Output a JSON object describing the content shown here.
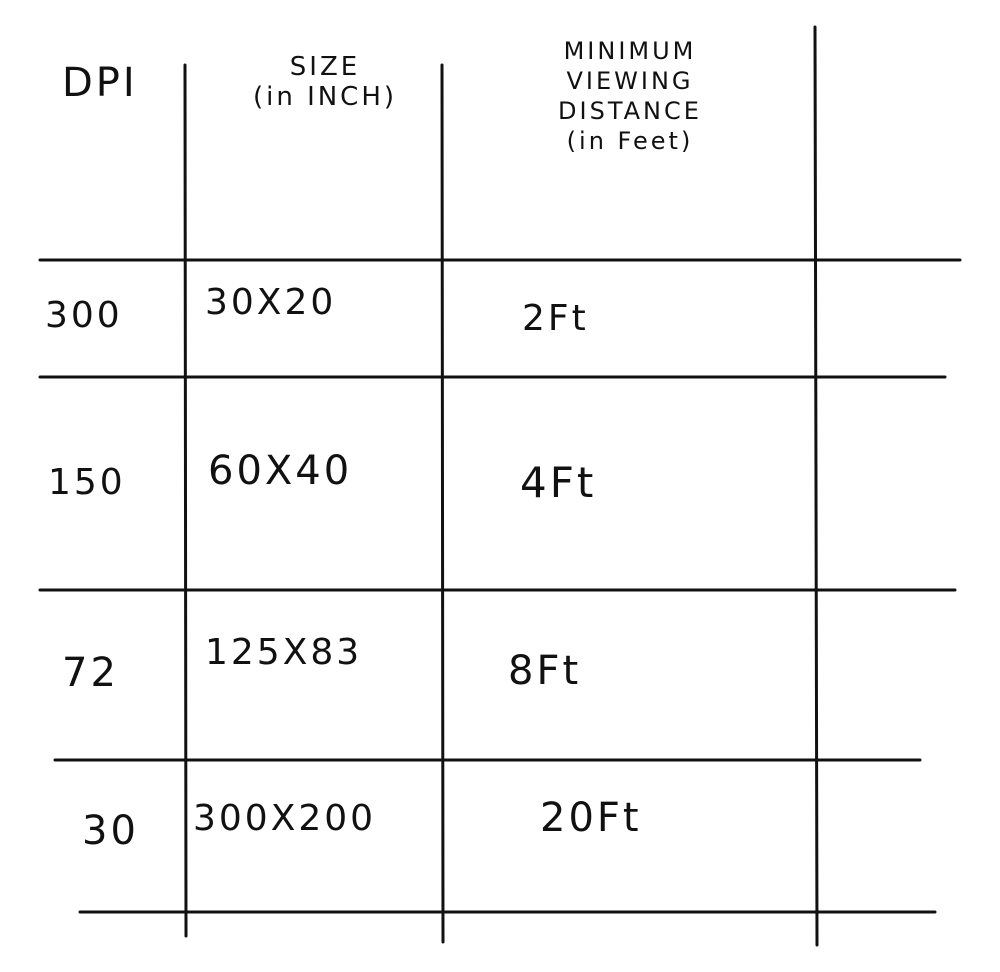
{
  "headers": {
    "dpi": "DPI",
    "size_line1": "SIZE",
    "size_line2": "(in INCH)",
    "distance_line1": "MINIMUM",
    "distance_line2": "VIEWING",
    "distance_line3": "DISTANCE",
    "distance_line4": "(in Feet)"
  },
  "rows": [
    {
      "dpi": "300",
      "size": "30X20",
      "distance": "2Ft"
    },
    {
      "dpi": "150",
      "size": "60X40",
      "distance": "4Ft"
    },
    {
      "dpi": "72",
      "size": "125X83",
      "distance": "8Ft"
    },
    {
      "dpi": "30",
      "size": "300X200",
      "distance": "20Ft"
    }
  ]
}
